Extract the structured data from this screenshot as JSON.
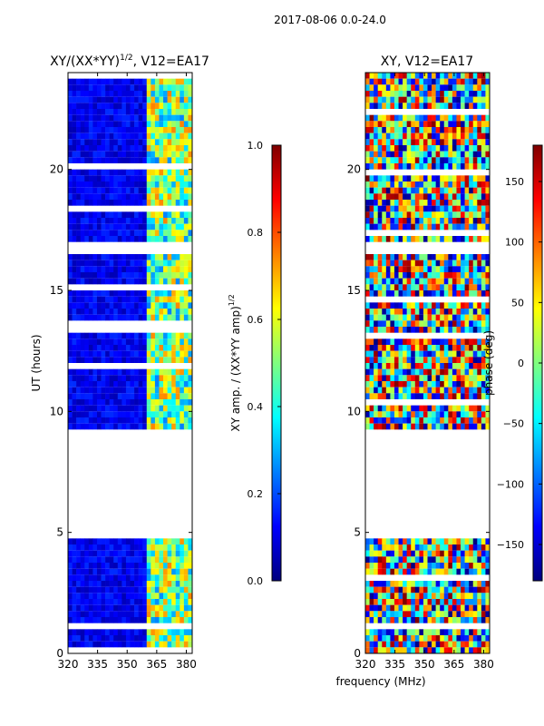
{
  "suptitle": "2017-08-06 0.0-24.0",
  "chart_data": [
    {
      "type": "heatmap",
      "title_main": "XY/(XX*YY)",
      "title_exp": "1/2",
      "title_tail": ", V12=EA17",
      "xlabel": "frequency (MHz)",
      "ylabel": "UT (hours)",
      "xlim": [
        320,
        383
      ],
      "ylim": [
        0,
        24
      ],
      "xticks": [
        320,
        335,
        350,
        365,
        380
      ],
      "yticks": [
        0,
        5,
        10,
        15,
        20
      ],
      "colorbar": {
        "label_main": "XY amp. / (XX*YY amp)",
        "label_exp": "1/2",
        "range": [
          0.0,
          1.0
        ],
        "ticks": [
          "0.0",
          "0.2",
          "0.4",
          "0.6",
          "0.8",
          "1.0"
        ],
        "tick_values": [
          0.0,
          0.2,
          0.4,
          0.6,
          0.8,
          1.0
        ],
        "colormap": "jet"
      },
      "data_gaps_hours": [
        [
          4.75,
          9.2
        ],
        [
          16.6,
          17.1
        ]
      ],
      "high_value_band_mhz": [
        360,
        383
      ]
    },
    {
      "type": "heatmap",
      "title": "XY, V12=EA17",
      "xlim": [
        320,
        383
      ],
      "ylim": [
        0,
        24
      ],
      "xticks": [
        320,
        335,
        350,
        365,
        380
      ],
      "yticks": [
        0,
        5,
        10,
        15,
        20
      ],
      "colorbar": {
        "label": "phase (deg)",
        "range": [
          -180,
          180
        ],
        "ticks": [
          "−150",
          "−100",
          "−50",
          "0",
          "50",
          "100",
          "150"
        ],
        "tick_values": [
          -150,
          -100,
          -50,
          0,
          50,
          100,
          150
        ],
        "colormap": "jet"
      },
      "data_gaps_hours": [
        [
          4.75,
          9.2
        ],
        [
          16.6,
          17.1
        ]
      ]
    }
  ]
}
